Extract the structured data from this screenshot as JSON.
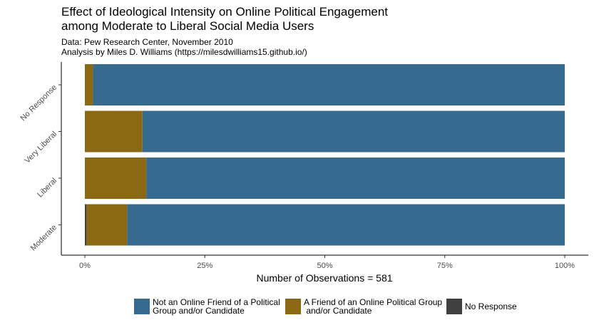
{
  "title_lines": [
    "Effect of Ideological Intensity on Online Political Engagement",
    "among Moderate to Liberal Social Media Users"
  ],
  "subtitle_lines": [
    "Data: Pew Research Center, November 2010",
    "Analysis by Miles D. Williams (https://milesdwilliams15.github.io/)"
  ],
  "chart_data": {
    "type": "bar",
    "orientation": "horizontal",
    "stacked": true,
    "percent": true,
    "title": "Effect of Ideological Intensity on Online Political Engagement among Moderate to Liberal Social Media Users",
    "xlabel": "Number of Observations = 581",
    "ylabel": "",
    "xlim": [
      0,
      1
    ],
    "x_ticks": [
      "0%",
      "25%",
      "50%",
      "75%",
      "100%"
    ],
    "categories": [
      "No Response",
      "Very Liberal",
      "Liberal",
      "Moderate"
    ],
    "series": [
      {
        "name": "Not an Online Friend of a Political Group and/or Candidate",
        "color": "#366a8f",
        "values": [
          0.983,
          0.88,
          0.872,
          0.912
        ]
      },
      {
        "name": "A Friend of an Online Political Group and/or Candidate",
        "color": "#8b6914",
        "values": [
          0.017,
          0.12,
          0.128,
          0.085
        ]
      },
      {
        "name": "No Response",
        "color": "#404040",
        "values": [
          0.0,
          0.0,
          0.0,
          0.003
        ]
      }
    ],
    "legend_position": "bottom",
    "grid": false
  },
  "legend": [
    {
      "lines": [
        "Not an Online Friend of a Political",
        "Group and/or Candidate"
      ],
      "color": "#366a8f"
    },
    {
      "lines": [
        "A Friend of an Online Political Group",
        " and/or Candidate"
      ],
      "color": "#8b6914"
    },
    {
      "lines": [
        "No Response"
      ],
      "color": "#404040"
    }
  ]
}
